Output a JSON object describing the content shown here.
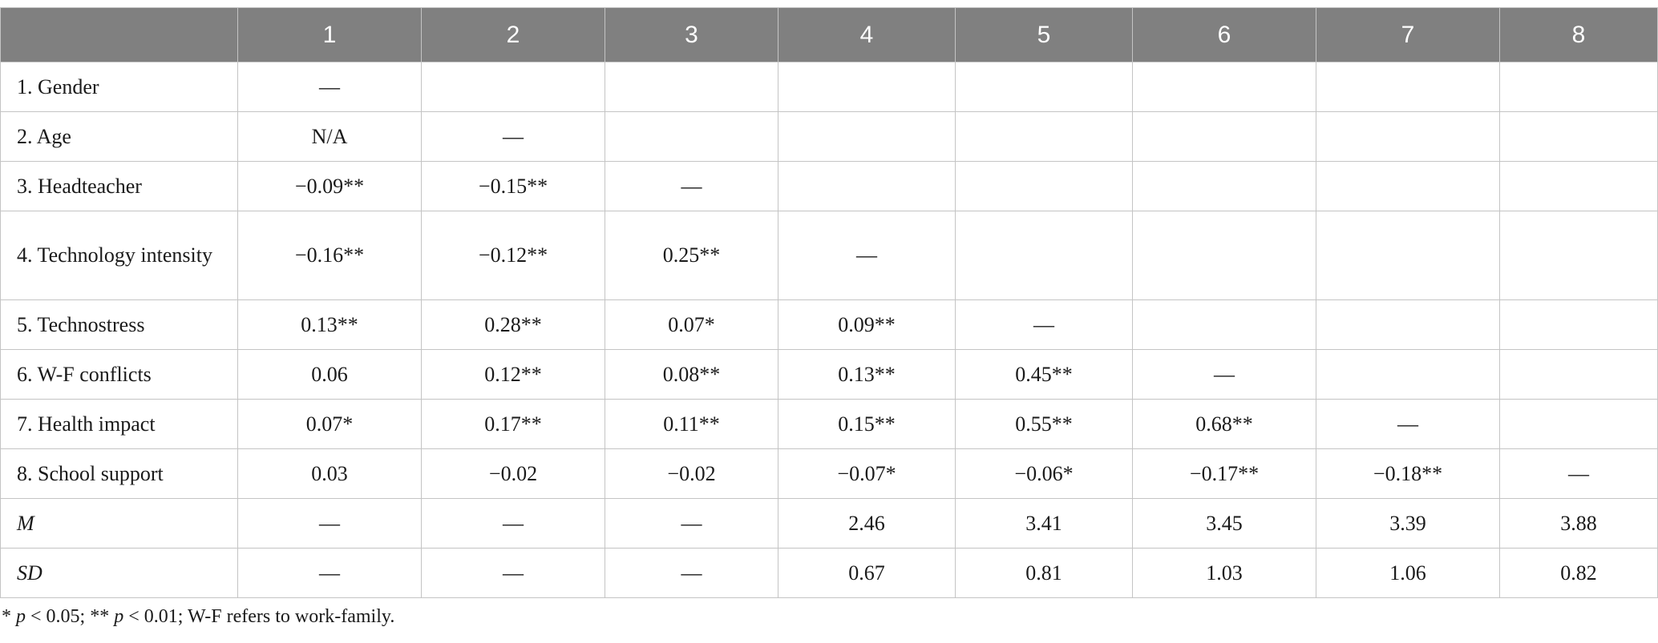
{
  "table": {
    "corner": "",
    "columns": [
      "1",
      "2",
      "3",
      "4",
      "5",
      "6",
      "7",
      "8"
    ],
    "rows": [
      {
        "label": "1.  Gender",
        "italic": false,
        "cells": [
          "—",
          "",
          "",
          "",
          "",
          "",
          "",
          ""
        ]
      },
      {
        "label": "2.  Age",
        "italic": false,
        "cells": [
          "N/A",
          "—",
          "",
          "",
          "",
          "",
          "",
          ""
        ]
      },
      {
        "label": "3.  Headteacher",
        "italic": false,
        "cells": [
          "−0.09**",
          "−0.15**",
          "—",
          "",
          "",
          "",
          "",
          ""
        ]
      },
      {
        "label": "4.  Technology intensity",
        "italic": false,
        "cells": [
          "−0.16**",
          "−0.12**",
          "0.25**",
          "—",
          "",
          "",
          "",
          ""
        ]
      },
      {
        "label": "5.  Technostress",
        "italic": false,
        "cells": [
          "0.13**",
          "0.28**",
          "0.07*",
          "0.09**",
          "—",
          "",
          "",
          ""
        ]
      },
      {
        "label": "6.  W-F conflicts",
        "italic": false,
        "cells": [
          "0.06",
          "0.12**",
          "0.08**",
          "0.13**",
          "0.45**",
          "—",
          "",
          ""
        ]
      },
      {
        "label": "7.  Health impact",
        "italic": false,
        "cells": [
          "0.07*",
          "0.17**",
          "0.11**",
          "0.15**",
          "0.55**",
          "0.68**",
          "—",
          ""
        ]
      },
      {
        "label": "8.  School support",
        "italic": false,
        "cells": [
          "0.03",
          "−0.02",
          "−0.02",
          "−0.07*",
          "−0.06*",
          "−0.17**",
          "−0.18**",
          "—"
        ]
      },
      {
        "label": "M",
        "italic": true,
        "cells": [
          "—",
          "—",
          "—",
          "2.46",
          "3.41",
          "3.45",
          "3.39",
          "3.88"
        ]
      },
      {
        "label": "SD",
        "italic": true,
        "cells": [
          "—",
          "—",
          "—",
          "0.67",
          "0.81",
          "1.03",
          "1.06",
          "0.82"
        ]
      }
    ]
  },
  "footnote": {
    "sig1_mark": "* ",
    "p1": "p",
    "sig1_text": " < 0.05; ** ",
    "p2": "p",
    "sig2_text": " < 0.01; W-F refers to work-family."
  }
}
